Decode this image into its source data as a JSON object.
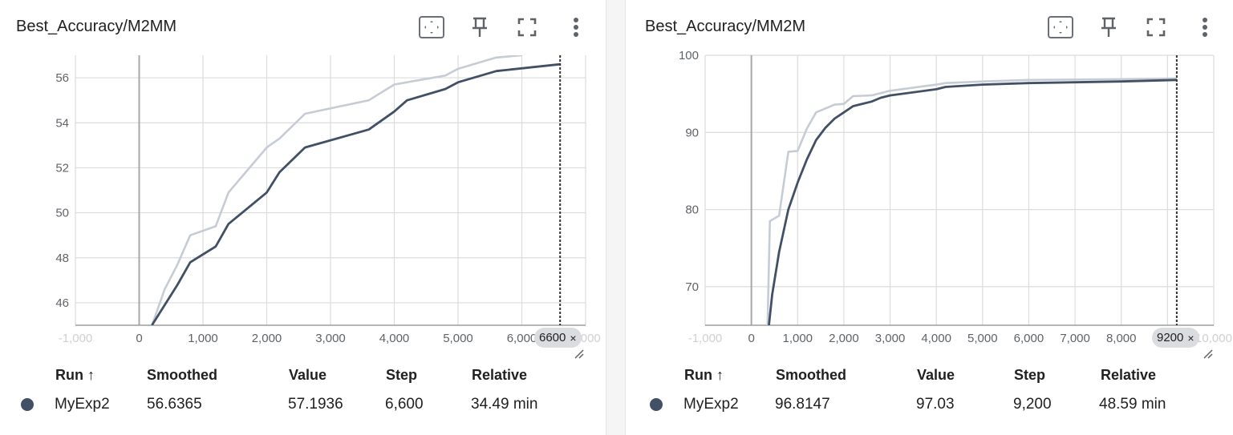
{
  "theme": {
    "smoothed_color": "#425066",
    "raw_color": "#c6ccd6",
    "grid_color": "#dcdcdc",
    "dot_color": "#425066"
  },
  "toolbar_icons": [
    "fit-domain-icon",
    "pin-icon",
    "fullscreen-icon",
    "more-vert-icon"
  ],
  "cards": [
    {
      "title": "Best_Accuracy/M2MM",
      "chip": {
        "label": "6600",
        "close": "×"
      },
      "table": {
        "headers": {
          "run": "Run ↑",
          "smoothed": "Smoothed",
          "value": "Value",
          "step": "Step",
          "relative": "Relative"
        },
        "row": {
          "run": "MyExp2",
          "smoothed": "56.6365",
          "value": "57.1936",
          "step": "6,600",
          "relative": "34.49 min"
        }
      },
      "chart_data": {
        "type": "line",
        "xlim": [
          -1000,
          7000
        ],
        "ylim": [
          45,
          57
        ],
        "x_ticks": [
          "-1,000",
          "0",
          "1,000",
          "2,000",
          "3,000",
          "4,000",
          "5,000",
          "6,000",
          "7,000"
        ],
        "y_ticks": [
          "46",
          "48",
          "50",
          "52",
          "54",
          "56"
        ],
        "cursor_x": 6600,
        "series": [
          {
            "role": "raw",
            "x": [
              200,
              400,
              600,
              800,
              1200,
              1400,
              2000,
              2200,
              2600,
              3600,
              4000,
              4800,
              5000,
              5600,
              6000
            ],
            "y": [
              45.0,
              46.6,
              47.7,
              49.0,
              49.4,
              50.9,
              52.9,
              53.3,
              54.4,
              55.0,
              55.7,
              56.1,
              56.4,
              56.9,
              57.0
            ]
          },
          {
            "role": "smoothed",
            "x": [
              200,
              400,
              600,
              800,
              1200,
              1400,
              2000,
              2200,
              2600,
              3600,
              4000,
              4200,
              4800,
              5000,
              5600,
              6600
            ],
            "y": [
              45.0,
              45.9,
              46.8,
              47.8,
              48.5,
              49.5,
              50.9,
              51.8,
              52.9,
              53.7,
              54.5,
              55.0,
              55.5,
              55.8,
              56.3,
              56.6
            ]
          }
        ]
      }
    },
    {
      "title": "Best_Accuracy/MM2M",
      "chip": {
        "label": "9200",
        "close": "×"
      },
      "table": {
        "headers": {
          "run": "Run ↑",
          "smoothed": "Smoothed",
          "value": "Value",
          "step": "Step",
          "relative": "Relative"
        },
        "row": {
          "run": "MyExp2",
          "smoothed": "96.8147",
          "value": "97.03",
          "step": "9,200",
          "relative": "48.59 min"
        }
      },
      "chart_data": {
        "type": "line",
        "xlim": [
          -1000,
          10000
        ],
        "ylim": [
          65,
          100
        ],
        "x_ticks": [
          "-1,000",
          "0",
          "1,000",
          "2,000",
          "3,000",
          "4,000",
          "5,000",
          "6,000",
          "7,000",
          "8,000",
          "9,000",
          "10,000"
        ],
        "y_ticks": [
          "70",
          "80",
          "90",
          "100"
        ],
        "cursor_x": 9200,
        "series": [
          {
            "role": "raw",
            "x": [
              350,
              400,
              600,
              800,
              1000,
              1200,
              1400,
              1800,
              2000,
              2200,
              2600,
              3000,
              4000,
              4200,
              5000,
              6000,
              8000,
              9200
            ],
            "y": [
              65.0,
              78.5,
              79.2,
              87.5,
              87.6,
              90.5,
              92.6,
              93.6,
              93.7,
              94.7,
              94.8,
              95.4,
              96.2,
              96.4,
              96.6,
              96.8,
              96.9,
              97.0
            ]
          },
          {
            "role": "smoothed",
            "x": [
              380,
              450,
              600,
              800,
              1000,
              1200,
              1400,
              1600,
              1800,
              2000,
              2200,
              2600,
              2800,
              3000,
              4000,
              4200,
              5000,
              6000,
              8000,
              9200
            ],
            "y": [
              65.0,
              69.0,
              74.5,
              80.0,
              83.5,
              86.5,
              89.0,
              90.6,
              91.8,
              92.6,
              93.4,
              94.0,
              94.5,
              94.8,
              95.6,
              95.9,
              96.2,
              96.4,
              96.6,
              96.8
            ]
          }
        ]
      }
    }
  ]
}
